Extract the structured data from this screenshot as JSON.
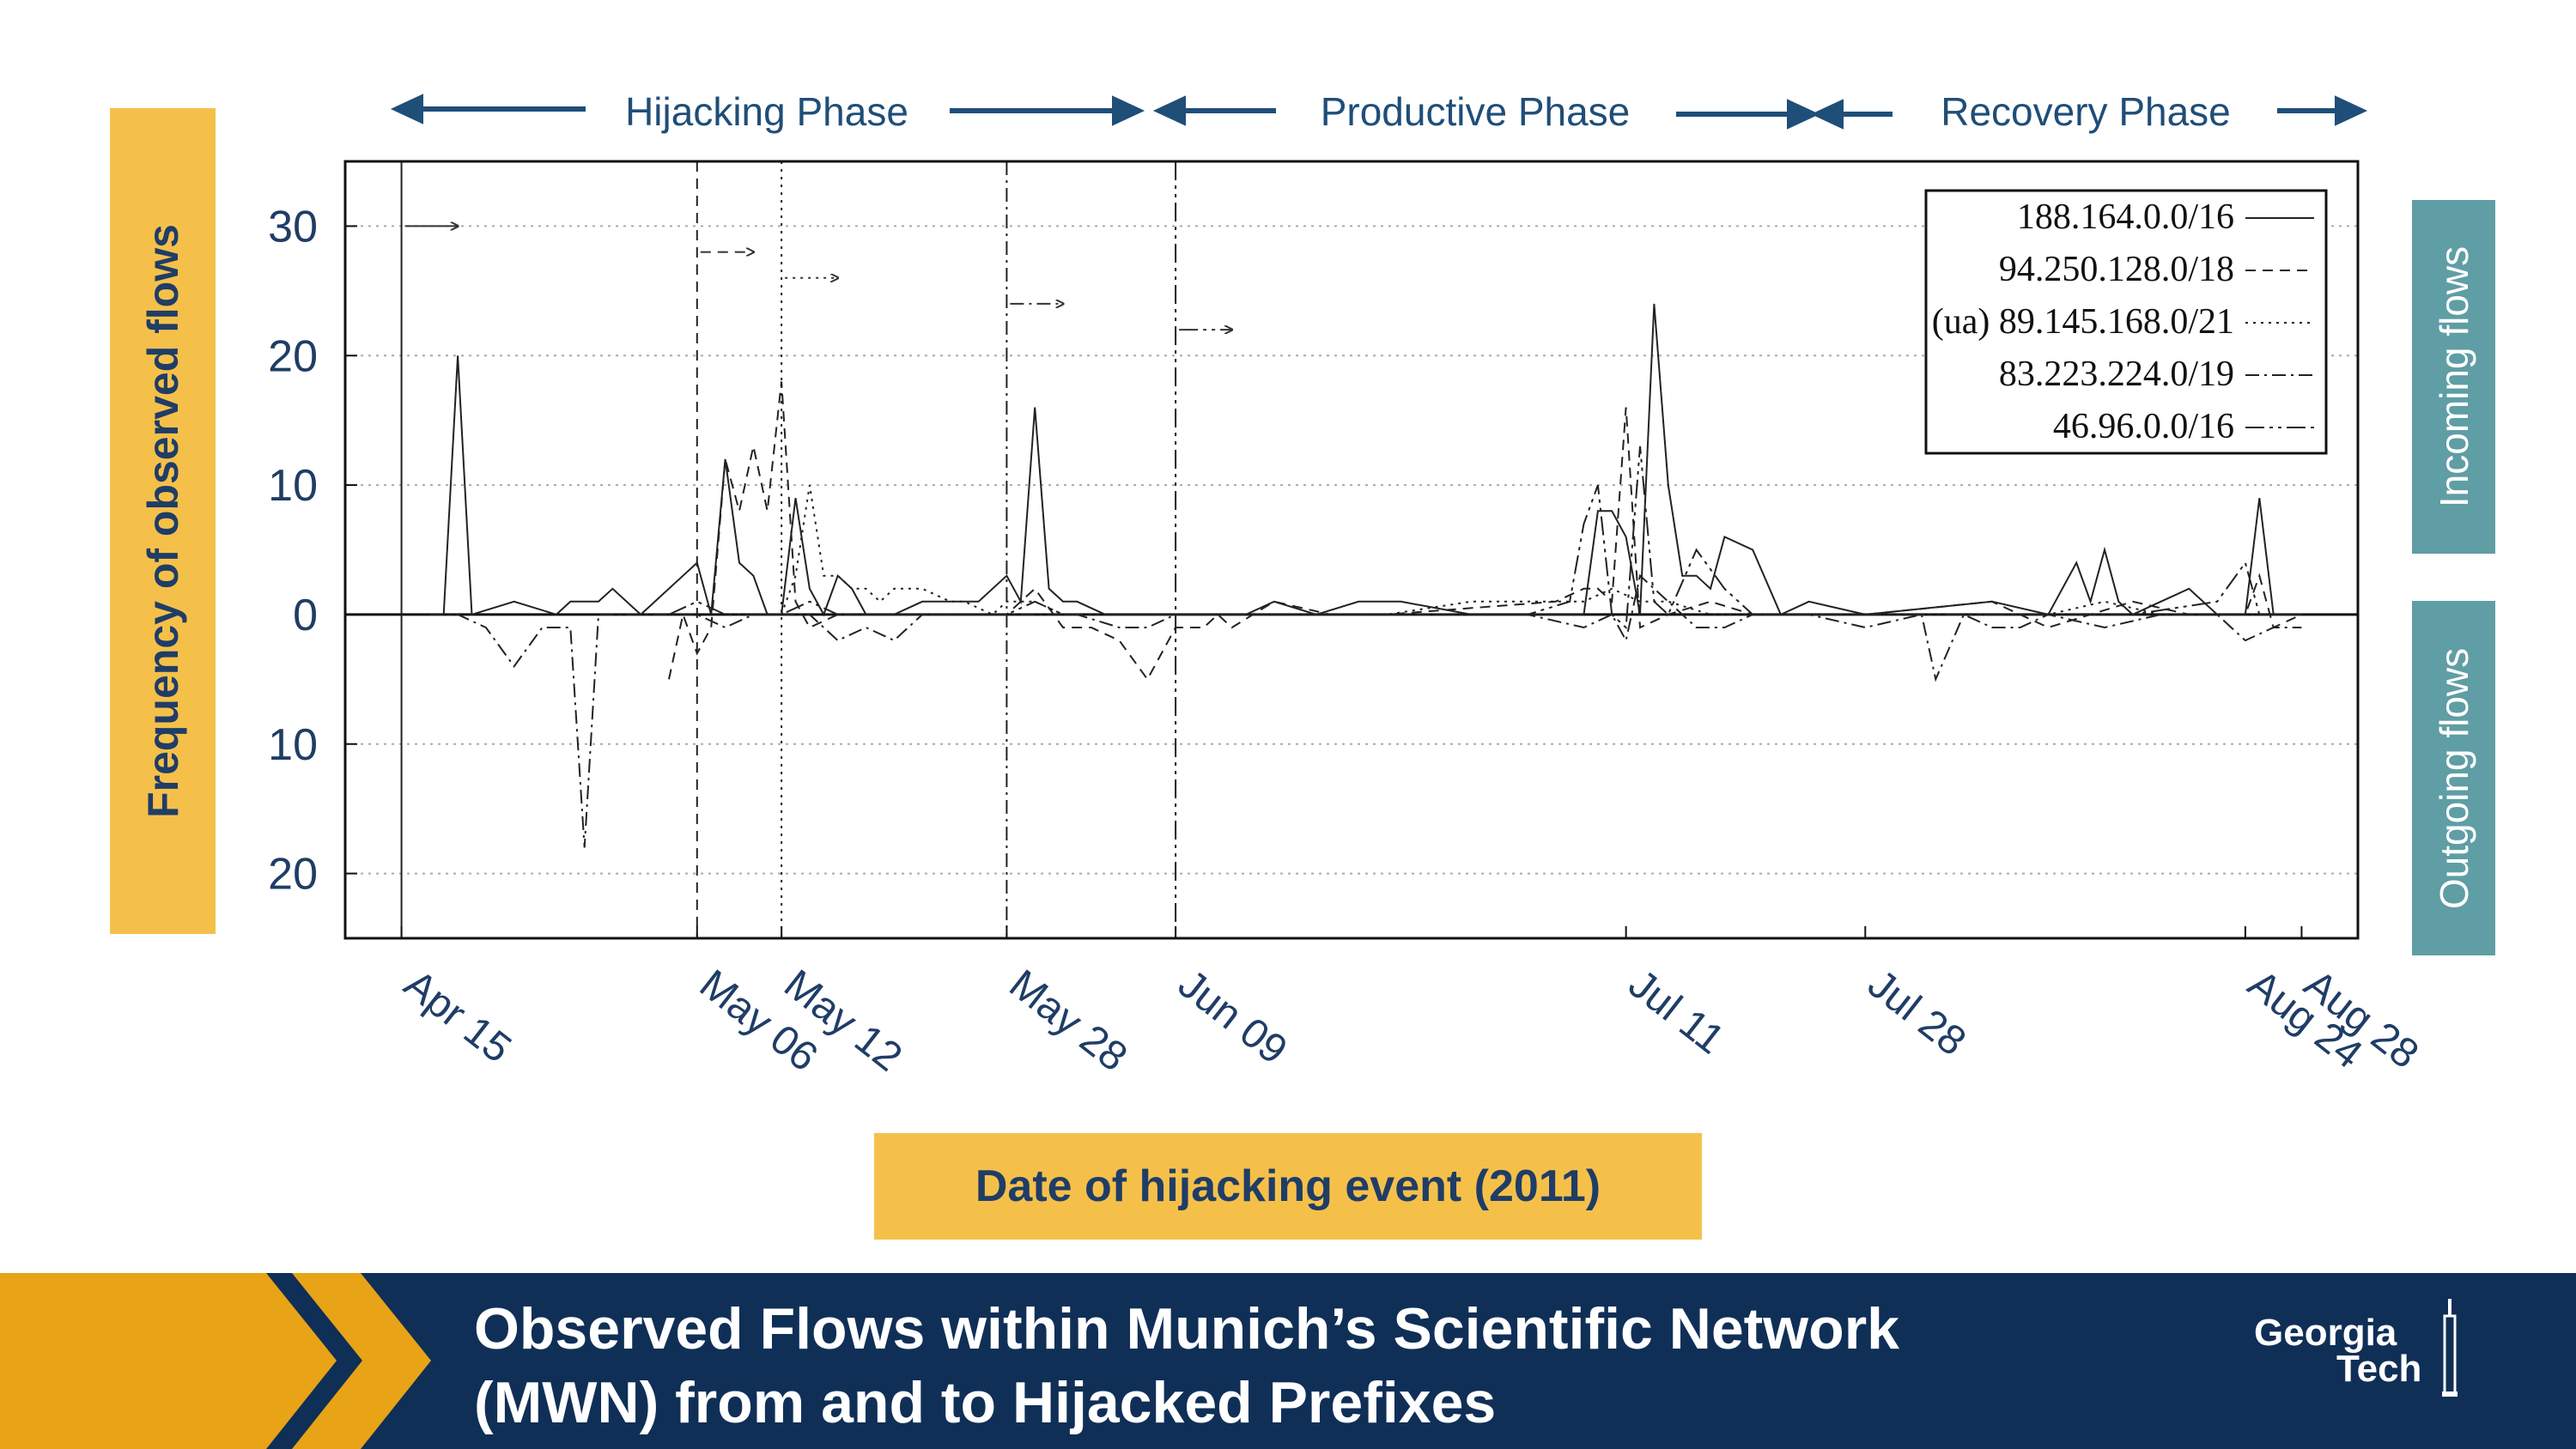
{
  "phases": [
    {
      "label": "Hijacking Phase"
    },
    {
      "label": "Productive Phase"
    },
    {
      "label": "Recovery Phase"
    }
  ],
  "ylabel": "Frequency of observed flows",
  "xlabel": "Date of hijacking event (2011)",
  "side_labels": {
    "incoming": "Incoming flows",
    "outgoing": "Outgoing flows"
  },
  "footer": {
    "title_line1": "Observed Flows within Munich’s Scientific Network",
    "title_line2": "(MWN) from and to Hijacked Prefixes",
    "logo_line1": "Georgia",
    "logo_line2": "Tech"
  },
  "colors": {
    "navy": "#1f4e79",
    "gold": "#f5c04a",
    "teal": "#5f9ea4",
    "footer_bg": "#0f2f57",
    "footer_gold": "#e8a317"
  },
  "chart_data": {
    "type": "line",
    "xlabel": "Date of hijacking event (2011)",
    "ylabel": "Frequency of observed flows",
    "x_range": [
      "2011-04-11",
      "2011-09-01"
    ],
    "ylim": [
      -25,
      35
    ],
    "y_tick_values": [
      30,
      20,
      10,
      0,
      -10,
      -20
    ],
    "y_tick_labels": [
      "30",
      "20",
      "10",
      "0",
      "10",
      "20"
    ],
    "x_ticks": [
      {
        "date": "2011-04-15",
        "label": "Apr 15"
      },
      {
        "date": "2011-05-06",
        "label": "May 06"
      },
      {
        "date": "2011-05-12",
        "label": "May 12"
      },
      {
        "date": "2011-05-28",
        "label": "May 28"
      },
      {
        "date": "2011-06-09",
        "label": "Jun 09"
      },
      {
        "date": "2011-07-11",
        "label": "Jul 11"
      },
      {
        "date": "2011-07-28",
        "label": "Jul 28"
      },
      {
        "date": "2011-08-24",
        "label": "Aug 24"
      },
      {
        "date": "2011-08-28",
        "label": "Aug 28"
      }
    ],
    "grid": true,
    "legend_position": "top-right",
    "event_lines": [
      {
        "date": "2011-04-15",
        "style": "solid",
        "series": 0,
        "arrow_y": 30
      },
      {
        "date": "2011-05-06",
        "style": "dashed",
        "series": 1,
        "arrow_y": 28
      },
      {
        "date": "2011-05-12",
        "style": "dotted",
        "series": 2,
        "arrow_y": 26
      },
      {
        "date": "2011-05-28",
        "style": "dashdot",
        "series": 3,
        "arrow_y": 24
      },
      {
        "date": "2011-06-09",
        "style": "dashdot2",
        "series": 4,
        "arrow_y": 22
      }
    ],
    "series": [
      {
        "name": "188.164.0.0/16",
        "style": "solid",
        "x": [
          "2011-04-18",
          "2011-04-19",
          "2011-04-20",
          "2011-04-23",
          "2011-04-26",
          "2011-04-27",
          "2011-04-28",
          "2011-04-29",
          "2011-04-30",
          "2011-05-02",
          "2011-05-05",
          "2011-05-06",
          "2011-05-07",
          "2011-05-08",
          "2011-05-09",
          "2011-05-10",
          "2011-05-11",
          "2011-05-12",
          "2011-05-13",
          "2011-05-14",
          "2011-05-15",
          "2011-05-16",
          "2011-05-17",
          "2011-05-18",
          "2011-05-20",
          "2011-05-22",
          "2011-05-24",
          "2011-05-26",
          "2011-05-28",
          "2011-05-29",
          "2011-05-30",
          "2011-05-31",
          "2011-06-01",
          "2011-06-02",
          "2011-06-04",
          "2011-06-07",
          "2011-06-09",
          "2011-06-14",
          "2011-06-16",
          "2011-06-19",
          "2011-06-22",
          "2011-06-25",
          "2011-06-30",
          "2011-07-08",
          "2011-07-09",
          "2011-07-10",
          "2011-07-11",
          "2011-07-12",
          "2011-07-13",
          "2011-07-14",
          "2011-07-15",
          "2011-07-16",
          "2011-07-17",
          "2011-07-18",
          "2011-07-20",
          "2011-07-22",
          "2011-07-24",
          "2011-07-28",
          "2011-08-06",
          "2011-08-10",
          "2011-08-12",
          "2011-08-13",
          "2011-08-14",
          "2011-08-15",
          "2011-08-16",
          "2011-08-18",
          "2011-08-20",
          "2011-08-22",
          "2011-08-24",
          "2011-08-25",
          "2011-08-26",
          "2011-08-28"
        ],
        "values": [
          0,
          20,
          0,
          1,
          0,
          1,
          1,
          1,
          2,
          0,
          3,
          4,
          0,
          12,
          4,
          3,
          0,
          0,
          9,
          2,
          0,
          3,
          2,
          0,
          0,
          1,
          1,
          1,
          3,
          1,
          16,
          2,
          1,
          1,
          0,
          0,
          0,
          0,
          1,
          0,
          1,
          1,
          0,
          0,
          8,
          8,
          6,
          0,
          24,
          10,
          3,
          3,
          2,
          6,
          5,
          0,
          1,
          0,
          1,
          0,
          4,
          1,
          5,
          1,
          0,
          1,
          2,
          0,
          0,
          9,
          0,
          0
        ]
      },
      {
        "name": "94.250.128.0/18",
        "style": "dashed",
        "x": [
          "2011-05-04",
          "2011-05-05",
          "2011-05-06",
          "2011-05-07",
          "2011-05-08",
          "2011-05-09",
          "2011-05-10",
          "2011-05-11",
          "2011-05-12",
          "2011-05-13",
          "2011-05-14",
          "2011-05-16",
          "2011-05-18",
          "2011-05-20",
          "2011-05-22",
          "2011-05-25",
          "2011-05-28",
          "2011-05-29",
          "2011-05-30",
          "2011-06-01",
          "2011-06-03",
          "2011-06-05",
          "2011-06-07",
          "2011-06-09",
          "2011-06-11",
          "2011-06-12",
          "2011-06-13",
          "2011-06-16",
          "2011-06-20",
          "2011-06-24",
          "2011-07-06",
          "2011-07-08",
          "2011-07-09",
          "2011-07-10",
          "2011-07-11",
          "2011-07-12",
          "2011-07-14",
          "2011-07-17",
          "2011-07-20",
          "2011-07-24",
          "2011-07-28",
          "2011-08-06",
          "2011-08-10",
          "2011-08-16",
          "2011-08-20",
          "2011-08-24",
          "2011-08-25",
          "2011-08-26",
          "2011-08-28"
        ],
        "values": [
          -5,
          0,
          -3,
          -1,
          12,
          8,
          13,
          8,
          18,
          1,
          -1,
          0,
          0,
          0,
          0,
          0,
          0,
          1,
          2,
          -1,
          -1,
          -2,
          -5,
          -1,
          -1,
          0,
          -1,
          1,
          0,
          0,
          1,
          2,
          2,
          1,
          16,
          -1,
          0,
          1,
          0,
          0,
          0,
          1,
          -1,
          1,
          0,
          0,
          3,
          -1,
          0
        ]
      },
      {
        "name": "(ua) 89.145.168.0/21",
        "style": "dotted",
        "x": [
          "2011-05-12",
          "2011-05-13",
          "2011-05-14",
          "2011-05-15",
          "2011-05-16",
          "2011-05-17",
          "2011-05-18",
          "2011-05-19",
          "2011-05-20",
          "2011-05-22",
          "2011-05-24",
          "2011-05-25",
          "2011-05-27",
          "2011-05-28",
          "2011-05-30",
          "2011-06-01",
          "2011-06-04",
          "2011-06-09",
          "2011-06-13",
          "2011-06-17",
          "2011-06-20",
          "2011-06-24",
          "2011-06-30",
          "2011-07-04",
          "2011-07-08",
          "2011-07-10",
          "2011-07-12",
          "2011-07-14",
          "2011-07-17",
          "2011-07-20",
          "2011-07-24",
          "2011-07-28",
          "2011-08-04",
          "2011-08-10",
          "2011-08-14",
          "2011-08-18",
          "2011-08-24",
          "2011-08-28"
        ],
        "values": [
          0,
          3,
          10,
          3,
          3,
          2,
          2,
          1,
          2,
          2,
          1,
          1,
          0,
          1,
          1,
          0,
          0,
          0,
          0,
          0,
          0,
          0,
          1,
          1,
          1,
          2,
          1,
          1,
          0,
          0,
          0,
          0,
          0,
          0,
          1,
          0,
          0,
          0
        ]
      },
      {
        "name": "83.223.224.0/19",
        "style": "dashdot",
        "x": [
          "2011-04-17",
          "2011-04-19",
          "2011-04-21",
          "2011-04-23",
          "2011-04-25",
          "2011-04-26",
          "2011-04-27",
          "2011-04-28",
          "2011-04-29",
          "2011-04-30",
          "2011-05-06",
          "2011-05-08",
          "2011-05-10",
          "2011-05-14",
          "2011-05-16",
          "2011-05-18",
          "2011-05-20",
          "2011-05-22",
          "2011-05-24",
          "2011-05-28",
          "2011-05-30",
          "2011-06-02",
          "2011-06-05",
          "2011-06-07",
          "2011-06-09",
          "2011-06-13",
          "2011-06-16",
          "2011-06-20",
          "2011-06-25",
          "2011-06-30",
          "2011-07-04",
          "2011-07-08",
          "2011-07-10",
          "2011-07-11",
          "2011-07-12",
          "2011-07-14",
          "2011-07-16",
          "2011-07-18",
          "2011-07-20",
          "2011-07-24",
          "2011-07-28",
          "2011-08-01",
          "2011-08-02",
          "2011-08-04",
          "2011-08-06",
          "2011-08-08",
          "2011-08-10",
          "2011-08-14",
          "2011-08-18",
          "2011-08-22",
          "2011-08-24",
          "2011-08-26",
          "2011-08-28"
        ],
        "values": [
          0,
          0,
          -1,
          -4,
          -1,
          -1,
          -1,
          -18,
          0,
          0,
          0,
          -1,
          0,
          0,
          -2,
          -1,
          -2,
          0,
          0,
          0,
          0,
          0,
          -1,
          -1,
          0,
          0,
          0,
          0,
          0,
          0,
          0,
          -1,
          0,
          -2,
          3,
          1,
          -1,
          -1,
          0,
          0,
          -1,
          0,
          -5,
          0,
          -1,
          -1,
          0,
          -1,
          0,
          0,
          -2,
          -1,
          -1
        ]
      },
      {
        "name": "46.96.0.0/16",
        "style": "dashdot2",
        "x": [
          "2011-05-04",
          "2011-05-06",
          "2011-05-08",
          "2011-05-10",
          "2011-05-12",
          "2011-05-14",
          "2011-05-16",
          "2011-05-20",
          "2011-05-24",
          "2011-05-28",
          "2011-05-30",
          "2011-06-01",
          "2011-06-04",
          "2011-06-09",
          "2011-06-14",
          "2011-06-20",
          "2011-06-26",
          "2011-07-04",
          "2011-07-07",
          "2011-07-08",
          "2011-07-09",
          "2011-07-10",
          "2011-07-11",
          "2011-07-12",
          "2011-07-13",
          "2011-07-14",
          "2011-07-16",
          "2011-07-18",
          "2011-07-20",
          "2011-07-24",
          "2011-07-28",
          "2011-08-04",
          "2011-08-10",
          "2011-08-16",
          "2011-08-22",
          "2011-08-24",
          "2011-08-25",
          "2011-08-28"
        ],
        "values": [
          0,
          1,
          0,
          0,
          0,
          1,
          0,
          0,
          0,
          0,
          1,
          0,
          0,
          0,
          0,
          0,
          0,
          0,
          1,
          7,
          10,
          0,
          -1,
          13,
          1,
          0,
          5,
          2,
          0,
          0,
          0,
          0,
          0,
          0,
          1,
          4,
          0,
          0
        ]
      }
    ]
  }
}
